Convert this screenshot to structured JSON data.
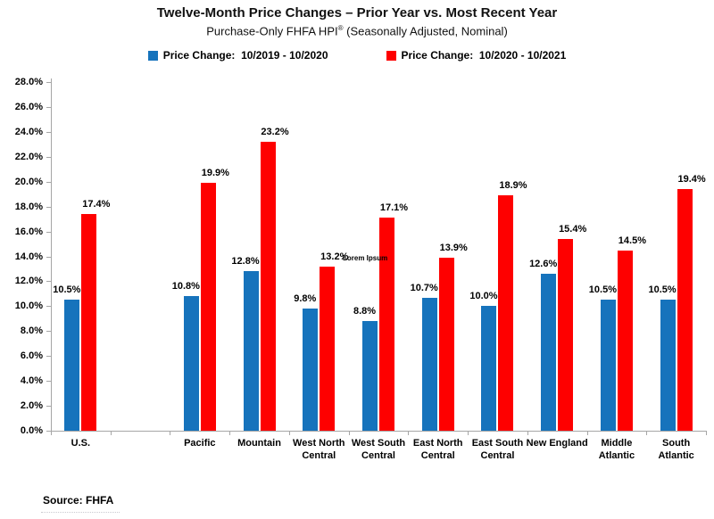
{
  "title": "Twelve-Month Price Changes – Prior Year vs. Most Recent Year",
  "subtitle": {
    "pre": "Purchase-Only FHFA HPI",
    "registered_mark": "®",
    "post": " (Seasonally Adjusted, Nominal)"
  },
  "legend": [
    {
      "label": "Price Change:  10/2019 - 10/2020",
      "color": "#1673BC"
    },
    {
      "label": "Price Change:  10/2020 - 10/2021",
      "color": "#FE0000"
    }
  ],
  "watermark": "Lorem Ipsum",
  "source_note": "Source: FHFA",
  "colors": {
    "series_prior_year": "#1673BC",
    "series_recent_year": "#FE0000",
    "axis": "#a6a6a6",
    "text": "#000000"
  },
  "chart_data": {
    "type": "bar",
    "title": "Twelve-Month Price Changes – Prior Year vs. Most Recent Year",
    "subtitle": "Purchase-Only FHFA HPI® (Seasonally Adjusted, Nominal)",
    "categories": [
      "U.S.",
      "Pacific",
      "Mountain",
      "West North Central",
      "West South Central",
      "East North Central",
      "East South Central",
      "New England",
      "Middle Atlantic",
      "South Atlantic"
    ],
    "series": [
      {
        "name": "Price Change:  10/2019 - 10/2020",
        "color": "#1673BC",
        "values": [
          10.5,
          10.8,
          12.8,
          9.8,
          8.8,
          10.7,
          10.0,
          12.6,
          10.5,
          10.5
        ]
      },
      {
        "name": "Price Change:  10/2020 - 10/2021",
        "color": "#FE0000",
        "values": [
          17.4,
          19.9,
          23.2,
          13.2,
          17.1,
          13.9,
          18.9,
          15.4,
          14.5,
          19.4
        ]
      }
    ],
    "xlabel": "",
    "ylabel": "",
    "ylim": [
      0,
      28
    ],
    "ytick_step": 2,
    "ytick_format": "percent_one_decimal",
    "data_labels": true,
    "grid": false,
    "gap_after_first_category": true,
    "legend_position": "top",
    "source": "Source: FHFA"
  }
}
